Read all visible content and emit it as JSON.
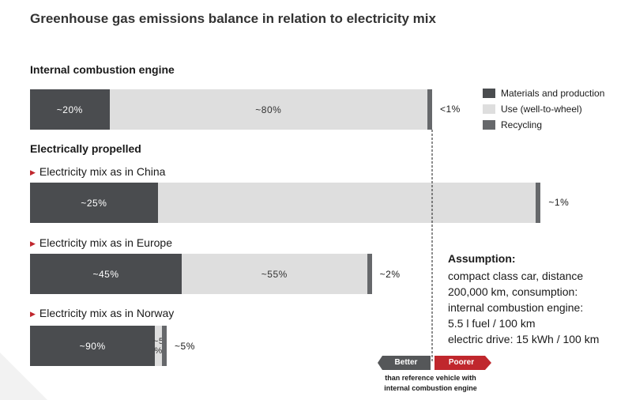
{
  "chart_data": {
    "type": "bar",
    "orientation": "horizontal-stacked",
    "title": "Greenhouse gas emissions balance in relation to electricity mix",
    "legend": {
      "placement": "top-right",
      "entries": [
        {
          "name": "Materials and production",
          "color": "#4a4c4f"
        },
        {
          "name": "Use (well-to-wheel)",
          "color": "#dedede"
        },
        {
          "name": "Recycling",
          "color": "#66686b"
        }
      ]
    },
    "groups": [
      {
        "label": "Internal combustion engine"
      },
      {
        "label": "Electrically propelled"
      }
    ],
    "bars": [
      {
        "label": "Internal combustion engine",
        "total": 1.0,
        "segments": [
          {
            "series": "Materials and production",
            "value": 20,
            "label": "~20%"
          },
          {
            "series": "Use (well-to-wheel)",
            "value": 80,
            "label": "~80%"
          },
          {
            "series": "Recycling",
            "value": 1,
            "label": "<1%"
          }
        ]
      },
      {
        "label": "Electricity mix as in China",
        "total": 1.27,
        "segments": [
          {
            "series": "Materials and production",
            "value": 25,
            "label": "~25%"
          },
          {
            "series": "Use (well-to-wheel)",
            "value": 74,
            "label": ""
          },
          {
            "series": "Recycling",
            "value": 1,
            "label": "~1%"
          }
        ]
      },
      {
        "label": "Electricity mix as in Europe",
        "total": 0.85,
        "segments": [
          {
            "series": "Materials and production",
            "value": 45,
            "label": "~45%"
          },
          {
            "series": "Use (well-to-wheel)",
            "value": 55,
            "label": "~55%"
          },
          {
            "series": "Recycling",
            "value": 2,
            "label": "~2%"
          }
        ]
      },
      {
        "label": "Electricity mix as in Norway",
        "total": 0.34,
        "segments": [
          {
            "series": "Materials and production",
            "value": 90,
            "label": "~90%"
          },
          {
            "series": "Use (well-to-wheel)",
            "value": 5,
            "label": "~5\n%"
          },
          {
            "series": "Recycling",
            "value": 5,
            "label": "~5%"
          }
        ]
      }
    ],
    "reference_line": {
      "value": 1.0
    },
    "comparison": {
      "better": "Better",
      "poorer": "Poorer",
      "note_line1": "than reference vehicle with",
      "note_line2": "internal combustion engine",
      "better_color": "#555759",
      "poorer_color": "#c0272d"
    },
    "assumption": {
      "heading": "Assumption:",
      "lines": [
        "compact class car, distance",
        "200,000 km, consumption:",
        "internal combustion engine:",
        "5.5 l fuel / 100 km",
        "electric drive: 15 kWh / 100 km"
      ]
    }
  }
}
